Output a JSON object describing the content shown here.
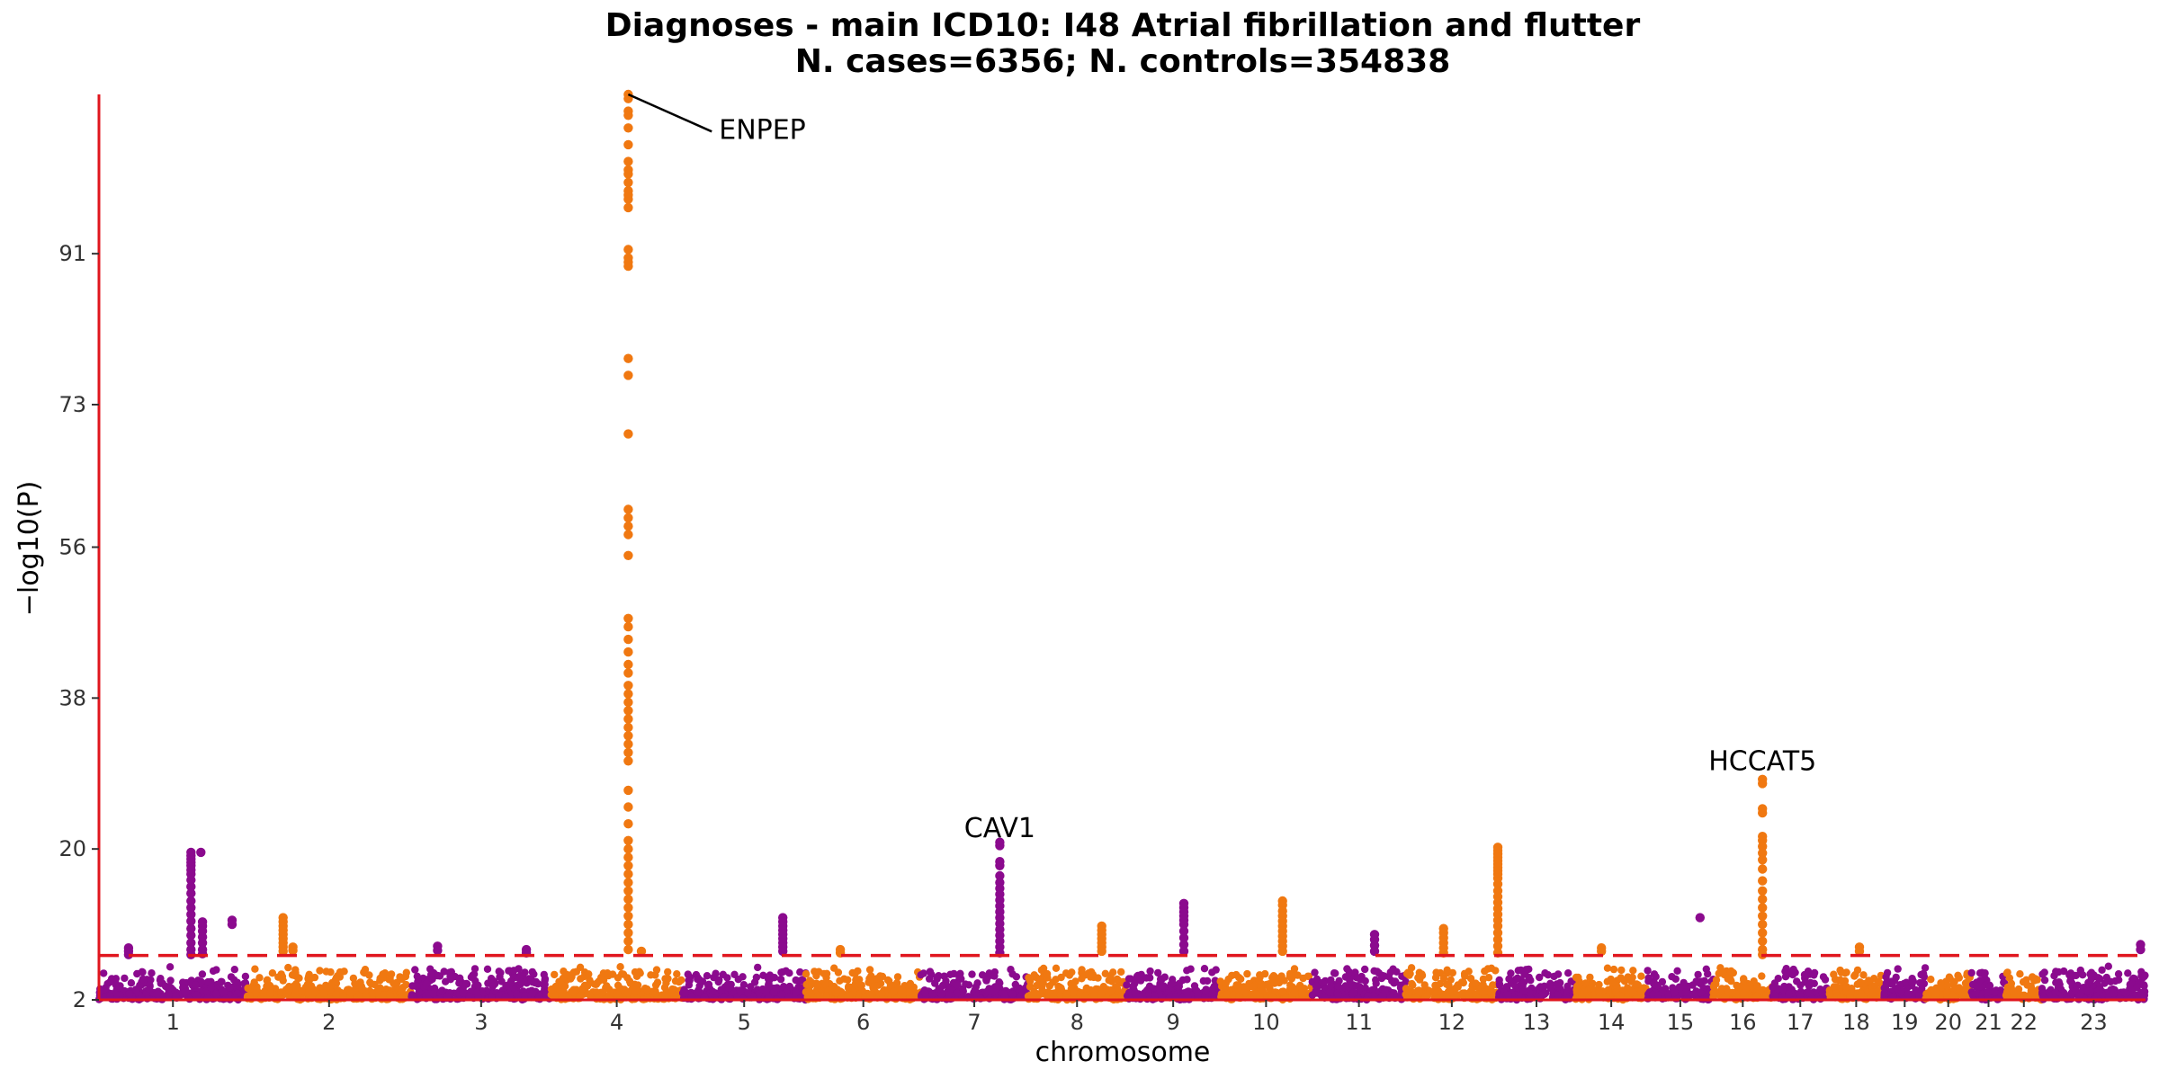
{
  "chart_data": {
    "type": "scatter",
    "title": "Diagnoses - main ICD10: I48 Atrial fibrillation and flutter",
    "subtitle": "N. cases=6356; N. controls=354838",
    "xlabel": "chromosome",
    "ylabel": "−log10(P)",
    "ylim": [
      2,
      110
    ],
    "yticks": [
      2,
      20,
      38,
      56,
      73,
      91
    ],
    "significance_threshold": 7.3,
    "colors": {
      "odd": "#8B0A8E",
      "even": "#F07811",
      "axis": "#E0161E",
      "threshold": "#E0161E"
    },
    "chromosomes": [
      {
        "label": "1",
        "start": 0.0,
        "end": 0.9
      },
      {
        "label": "2",
        "start": 0.9,
        "end": 1.9
      },
      {
        "label": "3",
        "start": 1.9,
        "end": 2.75
      },
      {
        "label": "4",
        "start": 2.75,
        "end": 3.55
      },
      {
        "label": "5",
        "start": 3.55,
        "end": 4.3
      },
      {
        "label": "6",
        "start": 4.3,
        "end": 5.0
      },
      {
        "label": "7",
        "start": 5.0,
        "end": 5.65
      },
      {
        "label": "8",
        "start": 5.65,
        "end": 6.25
      },
      {
        "label": "9",
        "start": 6.25,
        "end": 6.82
      },
      {
        "label": "10",
        "start": 6.82,
        "end": 7.38
      },
      {
        "label": "11",
        "start": 7.38,
        "end": 7.95
      },
      {
        "label": "12",
        "start": 7.95,
        "end": 8.51
      },
      {
        "label": "13",
        "start": 8.51,
        "end": 8.98
      },
      {
        "label": "14",
        "start": 8.98,
        "end": 9.42
      },
      {
        "label": "15",
        "start": 9.42,
        "end": 9.82
      },
      {
        "label": "16",
        "start": 9.82,
        "end": 10.18
      },
      {
        "label": "17",
        "start": 10.18,
        "end": 10.52
      },
      {
        "label": "18",
        "start": 10.52,
        "end": 10.86
      },
      {
        "label": "19",
        "start": 10.86,
        "end": 11.11
      },
      {
        "label": "20",
        "start": 11.11,
        "end": 11.39
      },
      {
        "label": "21",
        "start": 11.39,
        "end": 11.6
      },
      {
        "label": "22",
        "start": 11.6,
        "end": 11.82
      },
      {
        "label": "23",
        "start": 11.82,
        "end": 12.45
      }
    ],
    "peaks": [
      {
        "chrom": 1,
        "pos": 0.18,
        "values": [
          8.2,
          7.8,
          7.4
        ]
      },
      {
        "chrom": 1,
        "pos": 0.56,
        "values": [
          19.6,
          19.2,
          18.8,
          18.4,
          18.0,
          17.5,
          17.0,
          16.3,
          15.5,
          14.7,
          13.8,
          13.0,
          12.2,
          11.4,
          10.5,
          9.7,
          8.8,
          8.0,
          7.4
        ]
      },
      {
        "chrom": 1,
        "pos": 0.62,
        "values": [
          19.6
        ]
      },
      {
        "chrom": 1,
        "pos": 0.63,
        "values": [
          11.3,
          10.8,
          10.2,
          9.5,
          8.8,
          8.0,
          7.5
        ]
      },
      {
        "chrom": 1,
        "pos": 0.81,
        "values": [
          11.5,
          11.0
        ]
      },
      {
        "chrom": 2,
        "pos": 1.12,
        "values": [
          11.8,
          11.3,
          10.8,
          10.3,
          9.8,
          9.3,
          8.8,
          8.3,
          7.8
        ]
      },
      {
        "chrom": 2,
        "pos": 1.18,
        "values": [
          8.3,
          7.9
        ]
      },
      {
        "chrom": 3,
        "pos": 2.06,
        "values": [
          8.4,
          7.9
        ]
      },
      {
        "chrom": 3,
        "pos": 2.6,
        "values": [
          8.0,
          7.6
        ]
      },
      {
        "chrom": 4,
        "pos": 3.22,
        "values": [
          110,
          109.5,
          108,
          107.5,
          106,
          104,
          102,
          101,
          100.5,
          99.5,
          98.5,
          98,
          97.5,
          96.5,
          91.5,
          90.5,
          90,
          89.5,
          78.5,
          76.5,
          69.5,
          60.5,
          59.5,
          58.5,
          57.5,
          55,
          47.5,
          46.5,
          45,
          43.5,
          42,
          41,
          39.5,
          38.5,
          37.5,
          36.5,
          35.5,
          34.5,
          33.5,
          32.5,
          31.5,
          30.5,
          27,
          25,
          23,
          21,
          20,
          19,
          18,
          17,
          16,
          15,
          14,
          13,
          12,
          11,
          10,
          9,
          8
        ]
      },
      {
        "chrom": 4,
        "pos": 3.3,
        "values": [
          7.8
        ]
      },
      {
        "chrom": 5,
        "pos": 4.16,
        "values": [
          11.8,
          11.3,
          10.8,
          10.3,
          9.8,
          9.3,
          8.8,
          8.3,
          7.8
        ]
      },
      {
        "chrom": 6,
        "pos": 4.51,
        "values": [
          8.0,
          7.6
        ]
      },
      {
        "chrom": 7,
        "pos": 5.48,
        "values": [
          20.8,
          20.4,
          18.5,
          18.0,
          16.8,
          16.0,
          15.3,
          14.6,
          13.9,
          13.2,
          12.5,
          11.8,
          11.1,
          10.4,
          9.7,
          9.0,
          8.3,
          7.6
        ]
      },
      {
        "chrom": 8,
        "pos": 6.1,
        "values": [
          10.8,
          10.3,
          9.8,
          9.3,
          8.8,
          8.3,
          7.8
        ]
      },
      {
        "chrom": 9,
        "pos": 6.6,
        "values": [
          13.5,
          13.0,
          12.5,
          12.0,
          11.5,
          11.0,
          10.2,
          9.4,
          8.6,
          7.8
        ]
      },
      {
        "chrom": 10,
        "pos": 7.2,
        "values": [
          13.8,
          13.3,
          12.6,
          12.0,
          11.4,
          10.8,
          10.2,
          9.6,
          9.0,
          8.4,
          7.8
        ]
      },
      {
        "chrom": 11,
        "pos": 7.76,
        "values": [
          9.8,
          9.2,
          8.5,
          7.8
        ]
      },
      {
        "chrom": 12,
        "pos": 8.18,
        "values": [
          10.5,
          10.0,
          9.4,
          8.8,
          8.2,
          7.6
        ]
      },
      {
        "chrom": 12,
        "pos": 8.51,
        "values": [
          20.2,
          19.8,
          19.4,
          19.0,
          18.6,
          18.2,
          17.8,
          17.4,
          17.0,
          16.5,
          15.8,
          15.0,
          14.3,
          13.6,
          12.9,
          12.2,
          11.5,
          10.8,
          10.0,
          9.2,
          8.4,
          7.6
        ]
      },
      {
        "chrom": 14,
        "pos": 9.14,
        "values": [
          8.2,
          7.8
        ]
      },
      {
        "chrom": 15,
        "pos": 9.74,
        "values": [
          11.8
        ]
      },
      {
        "chrom": 16,
        "pos": 10.12,
        "values": [
          28.3,
          27.8,
          24.8,
          24.3,
          21.5,
          21.0,
          20.3,
          19.5,
          18.7,
          17.6,
          16.2,
          15.0,
          14.0,
          13.0,
          12.0,
          11.0,
          10.0,
          9.0,
          8.0,
          7.4
        ]
      },
      {
        "chrom": 18,
        "pos": 10.71,
        "values": [
          8.3,
          7.8
        ]
      },
      {
        "chrom": 23,
        "pos": 12.42,
        "values": [
          8.6,
          8.0
        ]
      }
    ],
    "annotations": [
      {
        "label": "ENPEP",
        "x": 3.22,
        "y": 110,
        "label_x": 3.75,
        "label_y": 106
      },
      {
        "label": "CAV1",
        "x": 5.48,
        "y": 20.8,
        "label_x": 5.48,
        "label_y": 22.5
      },
      {
        "label": "HCCAT5",
        "x": 10.12,
        "y": 28.3,
        "label_x": 10.12,
        "label_y": 30.5
      }
    ],
    "legend": "none",
    "grid": false
  }
}
